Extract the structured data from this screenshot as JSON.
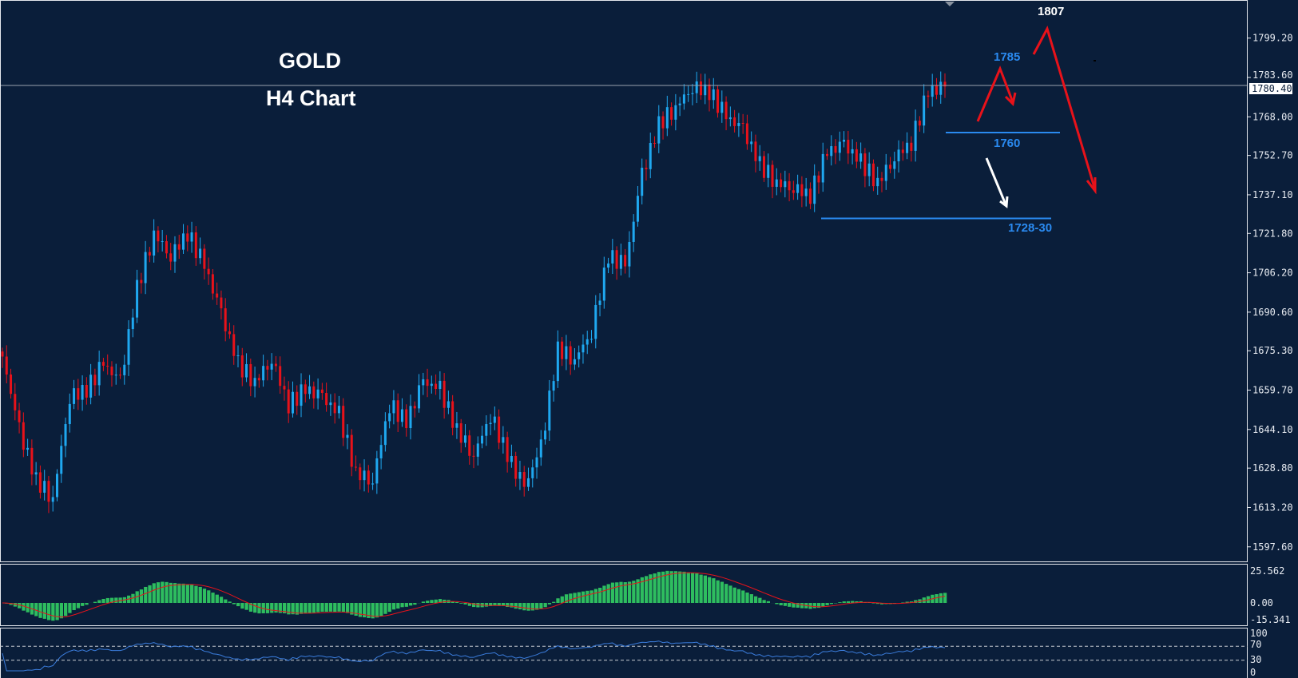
{
  "header": {
    "symbol": "GOLD",
    "timeframe": "H4 Chart"
  },
  "colors": {
    "background": "#0a1e3a",
    "bull": "#1fa8f0",
    "bear": "#e8121a",
    "level": "#2a8af0",
    "arrow_red": "#e8121a",
    "arrow_white": "#ffffff",
    "macd_hist": "#2ebd5f",
    "macd_signal": "#e8121a",
    "rsi_line": "#3b7ddd"
  },
  "chart_data": {
    "type": "candlestick",
    "price_path": [
      1673,
      1644,
      1624,
      1617,
      1657,
      1660,
      1670,
      1663,
      1700,
      1722,
      1713,
      1722,
      1709,
      1690,
      1670,
      1663,
      1672,
      1654,
      1660,
      1657,
      1650,
      1627,
      1624,
      1654,
      1647,
      1663,
      1660,
      1644,
      1634,
      1650,
      1634,
      1621,
      1637,
      1676,
      1672,
      1683,
      1713,
      1709,
      1745,
      1765,
      1772,
      1780,
      1778,
      1768,
      1763,
      1749,
      1742,
      1740,
      1737,
      1754,
      1757,
      1750,
      1742,
      1752,
      1758,
      1778,
      1780
    ],
    "y_ticks": [
      "1799.20",
      "1783.60",
      "1768.00",
      "1752.70",
      "1737.10",
      "1721.80",
      "1706.20",
      "1690.60",
      "1675.30",
      "1659.70",
      "1644.10",
      "1628.80",
      "1613.20",
      "1597.60"
    ],
    "ylim": [
      1597.6,
      1799.2
    ],
    "current_price": "1780.40",
    "annotations": {
      "target_high": "1807",
      "target_mid": "1785",
      "support_1": "1760",
      "support_2": "1728-30"
    },
    "macd": {
      "y_ticks": [
        "25.562",
        "0.00",
        "-15.341"
      ]
    },
    "rsi": {
      "y_ticks": [
        "100",
        "70",
        "30",
        "0"
      ]
    }
  }
}
